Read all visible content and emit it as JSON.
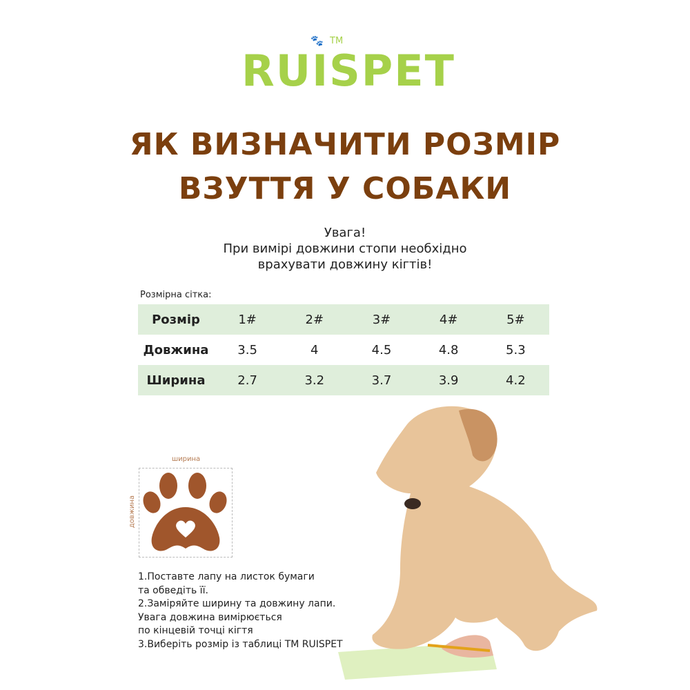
{
  "logo": {
    "text": "RUISPET",
    "tm": "TM"
  },
  "title": {
    "line1": "ЯК ВИЗНАЧИТИ РОЗМІР",
    "line2": "ВЗУТТЯ У СОБАКИ"
  },
  "notice": {
    "line1": "Увага!",
    "line2": "При вимірі довжини стопи необхідно",
    "line3": "врахувати довжину кігтів!"
  },
  "size_grid": {
    "label": "Розмірна сітка:",
    "rows": [
      {
        "header": "Розмір",
        "cells": [
          "1#",
          "2#",
          "3#",
          "4#",
          "5#"
        ]
      },
      {
        "header": "Довжина",
        "cells": [
          "3.5",
          "4",
          "4.5",
          "4.8",
          "5.3"
        ]
      },
      {
        "header": "Ширина",
        "cells": [
          "2.7",
          "3.2",
          "3.7",
          "3.9",
          "4.2"
        ]
      }
    ]
  },
  "paw_diagram": {
    "width_label": "ширина",
    "length_label": "довжина"
  },
  "steps": [
    "1.Поставте лапу на листок бумаги",
    "та обведіть її.",
    "2.Заміряйте ширину та довжину лапи.",
    "Увага довжина вимірюється",
    "по кінцевій точці кігтя",
    "3.Виберіть розмір із таблиці TM RUISPET"
  ],
  "colors": {
    "logo": "#a6d14a",
    "title": "#7b3f0e",
    "paw": "#a0562c",
    "table_row": "#dfeedb"
  }
}
